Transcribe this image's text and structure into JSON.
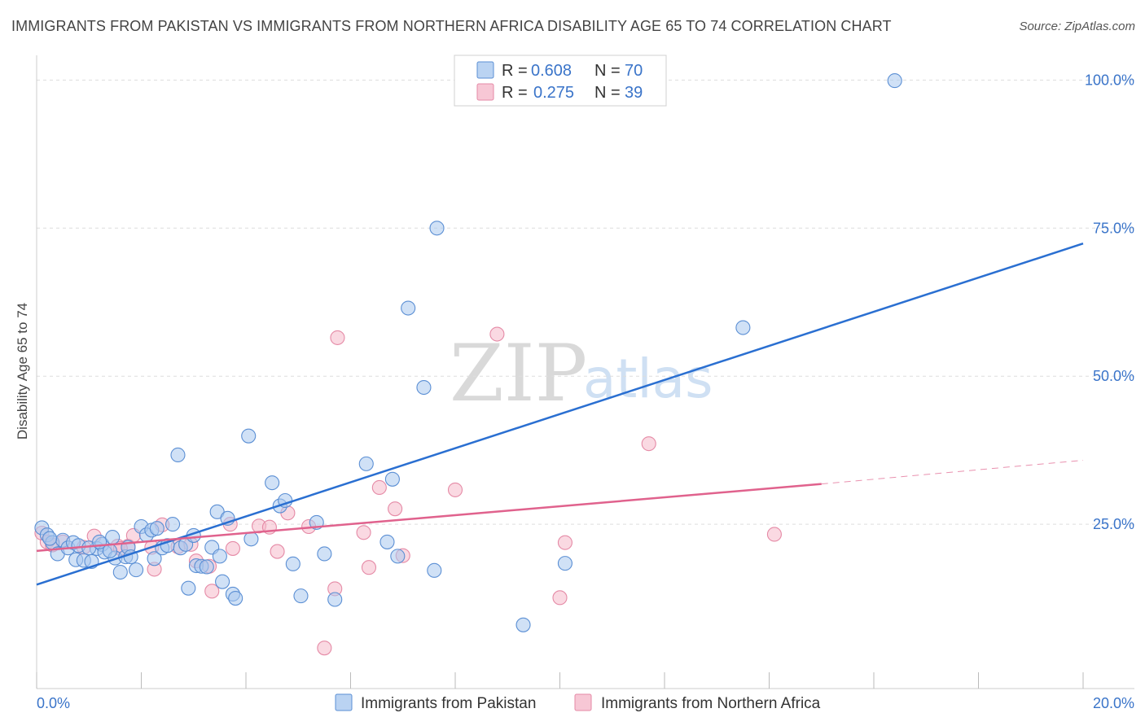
{
  "title": "IMMIGRANTS FROM PAKISTAN VS IMMIGRANTS FROM NORTHERN AFRICA DISABILITY AGE 65 TO 74 CORRELATION CHART",
  "source": "Source: ZipAtlas.com",
  "watermark": {
    "zip": "ZIP",
    "atlas": "atlas"
  },
  "legend": {
    "r_label": "R =",
    "n_label": "N =",
    "series": [
      {
        "r": "0.608",
        "n": "70"
      },
      {
        "r": "0.275",
        "n": "39"
      }
    ]
  },
  "colors": {
    "pakistan_fill": "#a9c8ef",
    "pakistan_stroke": "#5b8fd4",
    "pakistan_line": "#2a6fd1",
    "nafrica_fill": "#f5b9ca",
    "nafrica_stroke": "#e58aa6",
    "nafrica_line": "#e0628d",
    "tick": "#3a74c9",
    "grid": "#dddddd"
  },
  "chart_data": {
    "type": "scatter",
    "title": "IMMIGRANTS FROM PAKISTAN VS IMMIGRANTS FROM NORTHERN AFRICA DISABILITY AGE 65 TO 74 CORRELATION CHART",
    "xlabel": "",
    "ylabel": "Disability Age 65 to 74",
    "xlim": [
      0,
      20
    ],
    "ylim": [
      0,
      105
    ],
    "x_tick_labels": [
      "0.0%",
      "20.0%"
    ],
    "y_ticks": [
      25,
      50,
      75,
      100
    ],
    "y_tick_labels": [
      "25.0%",
      "50.0%",
      "75.0%",
      "100.0%"
    ],
    "series": [
      {
        "name": "Immigrants from Pakistan",
        "R": 0.608,
        "N": 70,
        "trend": {
          "x": [
            0,
            20
          ],
          "y": [
            14.8,
            72.4
          ]
        },
        "points": [
          [
            0.1,
            24.4
          ],
          [
            0.2,
            23.2
          ],
          [
            0.3,
            21.9
          ],
          [
            0.4,
            20.0
          ],
          [
            0.5,
            22.3
          ],
          [
            0.6,
            21.0
          ],
          [
            0.7,
            21.9
          ],
          [
            0.75,
            19.0
          ],
          [
            0.8,
            21.4
          ],
          [
            0.9,
            18.9
          ],
          [
            1.05,
            18.7
          ],
          [
            1.15,
            20.9
          ],
          [
            1.25,
            21.6
          ],
          [
            1.3,
            20.3
          ],
          [
            1.45,
            22.8
          ],
          [
            1.5,
            19.3
          ],
          [
            1.6,
            16.9
          ],
          [
            1.7,
            19.5
          ],
          [
            1.75,
            21.1
          ],
          [
            1.8,
            19.5
          ],
          [
            1.9,
            17.3
          ],
          [
            2.0,
            24.6
          ],
          [
            2.1,
            23.2
          ],
          [
            2.2,
            24.0
          ],
          [
            2.25,
            19.2
          ],
          [
            2.3,
            24.3
          ],
          [
            2.4,
            21.0
          ],
          [
            2.5,
            21.4
          ],
          [
            2.6,
            25.0
          ],
          [
            2.7,
            36.7
          ],
          [
            2.75,
            21.0
          ],
          [
            2.85,
            21.6
          ],
          [
            2.9,
            14.2
          ],
          [
            3.0,
            23.1
          ],
          [
            3.05,
            18.0
          ],
          [
            3.15,
            17.9
          ],
          [
            3.25,
            17.8
          ],
          [
            3.35,
            21.1
          ],
          [
            3.45,
            27.1
          ],
          [
            3.5,
            19.6
          ],
          [
            3.55,
            15.3
          ],
          [
            3.65,
            26.0
          ],
          [
            3.75,
            13.2
          ],
          [
            3.8,
            12.5
          ],
          [
            4.05,
            39.9
          ],
          [
            4.1,
            22.5
          ],
          [
            4.5,
            32.0
          ],
          [
            4.65,
            28.1
          ],
          [
            4.75,
            29.0
          ],
          [
            4.9,
            18.3
          ],
          [
            5.05,
            12.9
          ],
          [
            5.35,
            25.3
          ],
          [
            5.5,
            20.0
          ],
          [
            5.7,
            12.3
          ],
          [
            6.3,
            35.2
          ],
          [
            6.7,
            22.0
          ],
          [
            6.8,
            32.6
          ],
          [
            6.9,
            19.6
          ],
          [
            7.1,
            61.5
          ],
          [
            7.4,
            48.1
          ],
          [
            7.6,
            17.2
          ],
          [
            7.65,
            75.0
          ],
          [
            9.3,
            8.0
          ],
          [
            10.1,
            18.4
          ],
          [
            13.5,
            58.2
          ],
          [
            16.4,
            99.9
          ],
          [
            0.25,
            22.6
          ],
          [
            1.0,
            21.0
          ],
          [
            1.2,
            22.0
          ],
          [
            1.4,
            20.5
          ]
        ]
      },
      {
        "name": "Immigrants from Northern Africa",
        "R": 0.275,
        "N": 39,
        "trend": {
          "x": [
            0,
            15
          ],
          "y": [
            20.5,
            31.8
          ]
        },
        "trend_dashed": {
          "x": [
            15,
            20
          ],
          "y": [
            31.8,
            35.8
          ]
        },
        "points": [
          [
            0.1,
            23.5
          ],
          [
            0.2,
            22.0
          ],
          [
            0.5,
            22.0
          ],
          [
            0.9,
            21.1
          ],
          [
            1.1,
            23.0
          ],
          [
            1.55,
            21.3
          ],
          [
            1.75,
            21.3
          ],
          [
            1.85,
            23.1
          ],
          [
            2.2,
            21.1
          ],
          [
            2.25,
            17.4
          ],
          [
            2.4,
            24.9
          ],
          [
            2.7,
            21.2
          ],
          [
            3.05,
            18.8
          ],
          [
            3.3,
            17.9
          ],
          [
            3.35,
            13.7
          ],
          [
            3.7,
            25.0
          ],
          [
            3.75,
            20.9
          ],
          [
            4.25,
            24.7
          ],
          [
            4.45,
            24.5
          ],
          [
            4.6,
            20.4
          ],
          [
            4.8,
            26.9
          ],
          [
            5.2,
            24.6
          ],
          [
            5.5,
            4.1
          ],
          [
            5.7,
            14.1
          ],
          [
            5.75,
            56.5
          ],
          [
            6.25,
            23.6
          ],
          [
            6.35,
            17.7
          ],
          [
            6.55,
            31.2
          ],
          [
            6.85,
            27.6
          ],
          [
            7.0,
            19.7
          ],
          [
            8.0,
            30.8
          ],
          [
            8.8,
            57.1
          ],
          [
            10.0,
            12.6
          ],
          [
            10.1,
            21.9
          ],
          [
            11.7,
            38.6
          ],
          [
            14.1,
            23.3
          ],
          [
            0.3,
            21.5
          ],
          [
            1.6,
            20.9
          ],
          [
            2.95,
            21.6
          ]
        ]
      }
    ]
  },
  "bottom_legend": [
    {
      "label": "Immigrants from Pakistan"
    },
    {
      "label": "Immigrants from Northern Africa"
    }
  ]
}
